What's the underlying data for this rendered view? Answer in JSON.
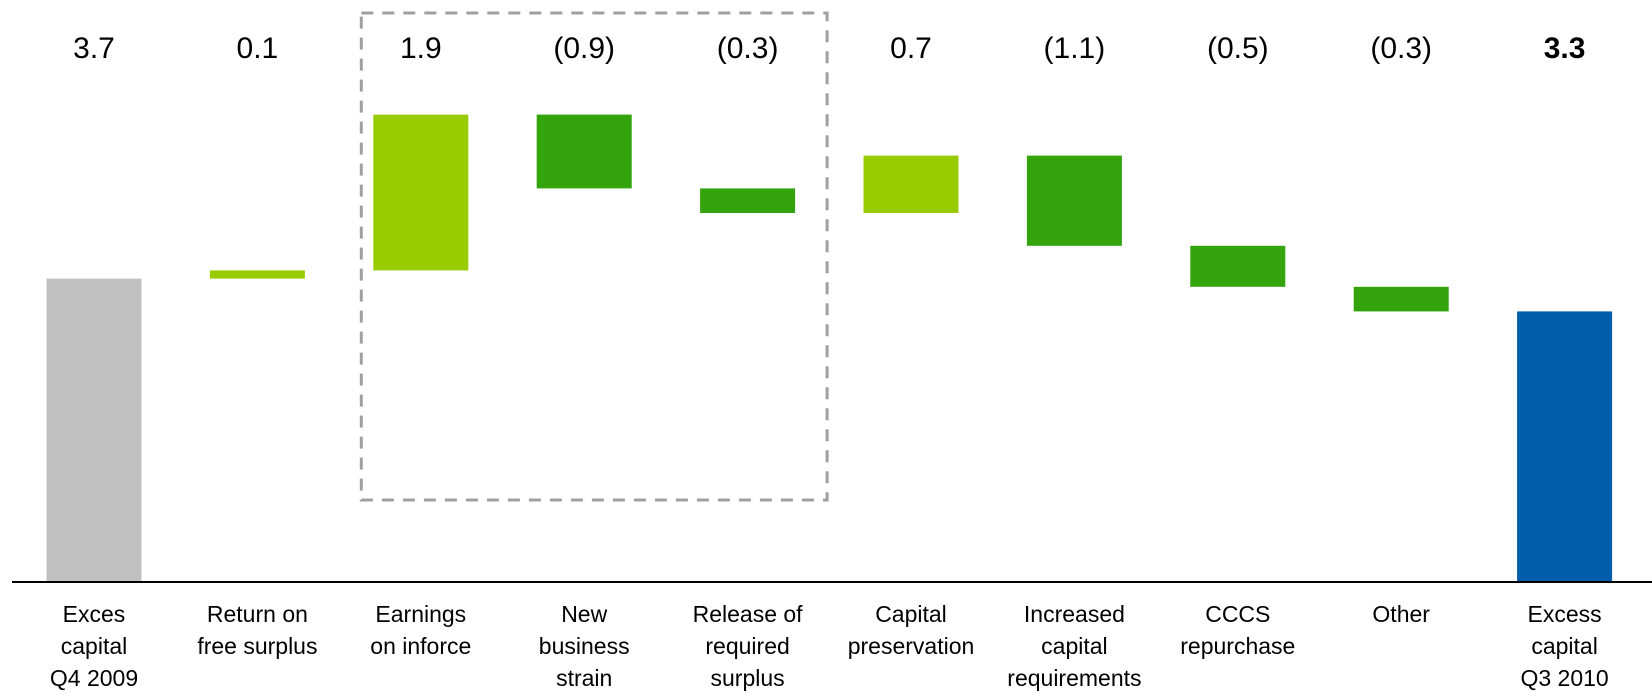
{
  "chart_data": {
    "type": "waterfall",
    "title": "",
    "xlabel": "",
    "ylabel": "",
    "ylim": [
      0,
      5.8
    ],
    "grid": false,
    "categories": [
      [
        "Exces",
        "capital",
        "Q4 2009"
      ],
      [
        "Return on",
        "free surplus"
      ],
      [
        "Earnings",
        "on inforce"
      ],
      [
        "New",
        "business",
        "strain"
      ],
      [
        "Release of",
        "required",
        "surplus"
      ],
      [
        "Capital",
        "preservation"
      ],
      [
        "Increased",
        "capital",
        "requirements"
      ],
      [
        "CCCS",
        "repurchase"
      ],
      [
        "Other"
      ],
      [
        "Excess",
        "capital",
        "Q3 2010"
      ]
    ],
    "values": [
      3.7,
      0.1,
      1.9,
      -0.9,
      -0.3,
      0.7,
      -1.1,
      -0.5,
      -0.3,
      3.3
    ],
    "value_labels": [
      "3.7",
      "0.1",
      "1.9",
      "(0.9)",
      "(0.3)",
      "0.7",
      "(1.1)",
      "(0.5)",
      "(0.3)",
      "3.3"
    ],
    "bar_kinds": [
      "total",
      "delta",
      "delta",
      "delta",
      "delta",
      "delta",
      "delta",
      "delta",
      "delta",
      "total"
    ],
    "bold_labels": [
      false,
      false,
      false,
      false,
      false,
      false,
      false,
      false,
      false,
      true
    ],
    "highlight_group": {
      "start_index": 2,
      "end_index": 4,
      "style": "dashed-box"
    },
    "colors": {
      "start_total": "#c0c0c0",
      "end_total": "#005dab",
      "increase": "#99cc00",
      "decrease": "#33a40c",
      "axis": "#000000",
      "highlight_box": "#a0a0a0"
    }
  }
}
